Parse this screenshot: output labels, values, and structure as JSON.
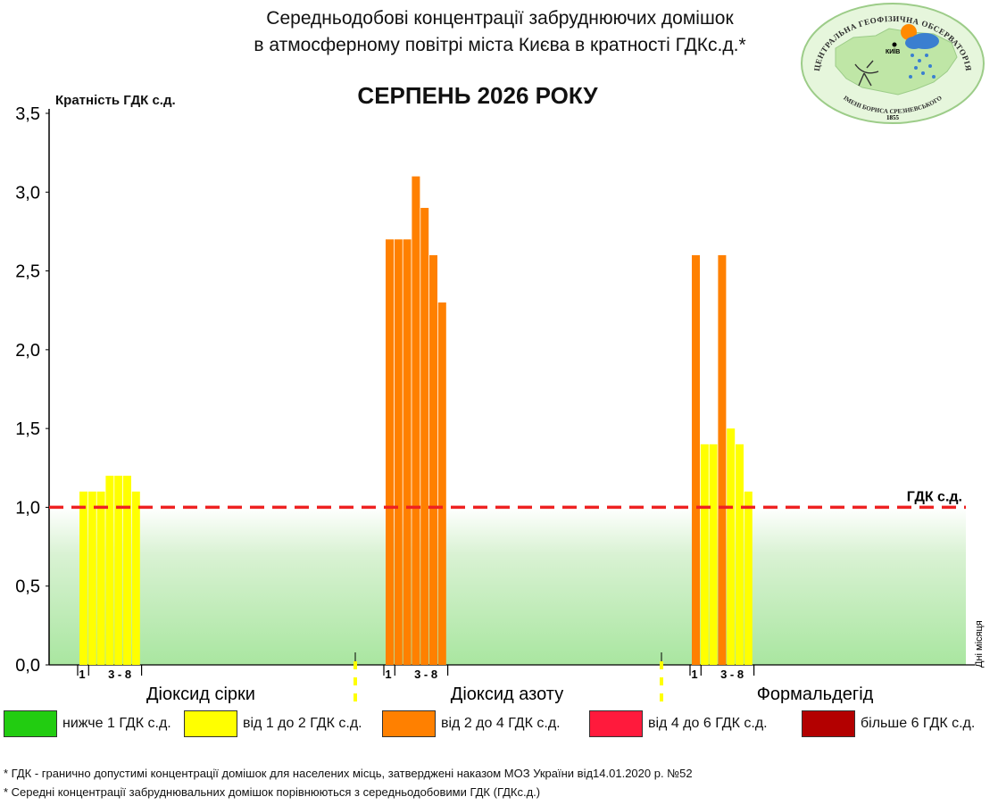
{
  "header": {
    "title_line1": "Середньодобові концентрації забруднюючих домішок",
    "title_line2": "в атмосферному повітрі міста Києва в кратності ГДКс.д.*",
    "month": "СЕРПЕНЬ 2026 РОКУ"
  },
  "logo": {
    "text_top": "ЦЕНТРАЛЬНА ГЕОФІЗИЧНА ОБСЕРВАТОРІЯ",
    "text_bottom": "ІМЕНІ БОРИСА СРЕЗНЕВСЬКОГО",
    "year": "1855",
    "city": "КИЇВ"
  },
  "legend": [
    {
      "label": "нижче 1 ГДК с.д.",
      "color": "#22cc11"
    },
    {
      "label": "від 1 до 2 ГДК с.д.",
      "color": "#ffff00"
    },
    {
      "label": "від 2 до 4 ГДК с.д.",
      "color": "#ff8000"
    },
    {
      "label": "від 4 до 6 ГДК с.д.",
      "color": "#ff1a3c"
    },
    {
      "label": "більше 6 ГДК с.д.",
      "color": "#b30000"
    }
  ],
  "notes": {
    "line1": "* ГДК - гранично допустимі концентрації домішок для населених місць, затверджені наказом МОЗ України від14.01.2020 р. №52",
    "line2": "* Середні концентрації забруднювальних домішок порівнюються з середньодобовими  ГДК (ГДКс.д.)"
  },
  "chart_data": {
    "type": "bar",
    "ylabel": "Кратність ГДК с.д.",
    "ylim": [
      0,
      3.5
    ],
    "yticks": [
      "0,0",
      "0,5",
      "1,0",
      "1,5",
      "2,0",
      "2,5",
      "3,0",
      "3,5"
    ],
    "xaxis_side_label": "Дні місяця",
    "reference_line": {
      "value": 1.0,
      "label": "ГДК с.д.",
      "color": "#ee2222"
    },
    "background_below_limit": "#a9e6a0",
    "groups": [
      {
        "name": "Діоксид сірки",
        "day_labels": [
          "1",
          "3 - 8"
        ],
        "days": [
          1,
          3,
          4,
          5,
          6,
          7,
          8
        ],
        "values": [
          1.1,
          1.1,
          1.1,
          1.2,
          1.2,
          1.2,
          1.1
        ],
        "colors": [
          "#ffff00",
          "#ffff00",
          "#ffff00",
          "#ffff00",
          "#ffff00",
          "#ffff00",
          "#ffff00"
        ]
      },
      {
        "name": "Діоксид азоту",
        "day_labels": [
          "1",
          "3 - 8"
        ],
        "days": [
          1,
          3,
          4,
          5,
          6,
          7,
          8
        ],
        "values": [
          2.7,
          2.7,
          2.7,
          3.1,
          2.9,
          2.6,
          2.3
        ],
        "colors": [
          "#ff8000",
          "#ff8000",
          "#ff8000",
          "#ff8000",
          "#ff8000",
          "#ff8000",
          "#ff8000"
        ]
      },
      {
        "name": "Формальдегід",
        "day_labels": [
          "1",
          "3 - 8"
        ],
        "days": [
          1,
          3,
          4,
          5,
          6,
          7,
          8
        ],
        "values": [
          2.6,
          1.4,
          1.4,
          2.6,
          1.5,
          1.4,
          1.1
        ],
        "colors": [
          "#ff8000",
          "#ffff00",
          "#ffff00",
          "#ff8000",
          "#ffff00",
          "#ffff00",
          "#ffff00"
        ]
      }
    ]
  }
}
